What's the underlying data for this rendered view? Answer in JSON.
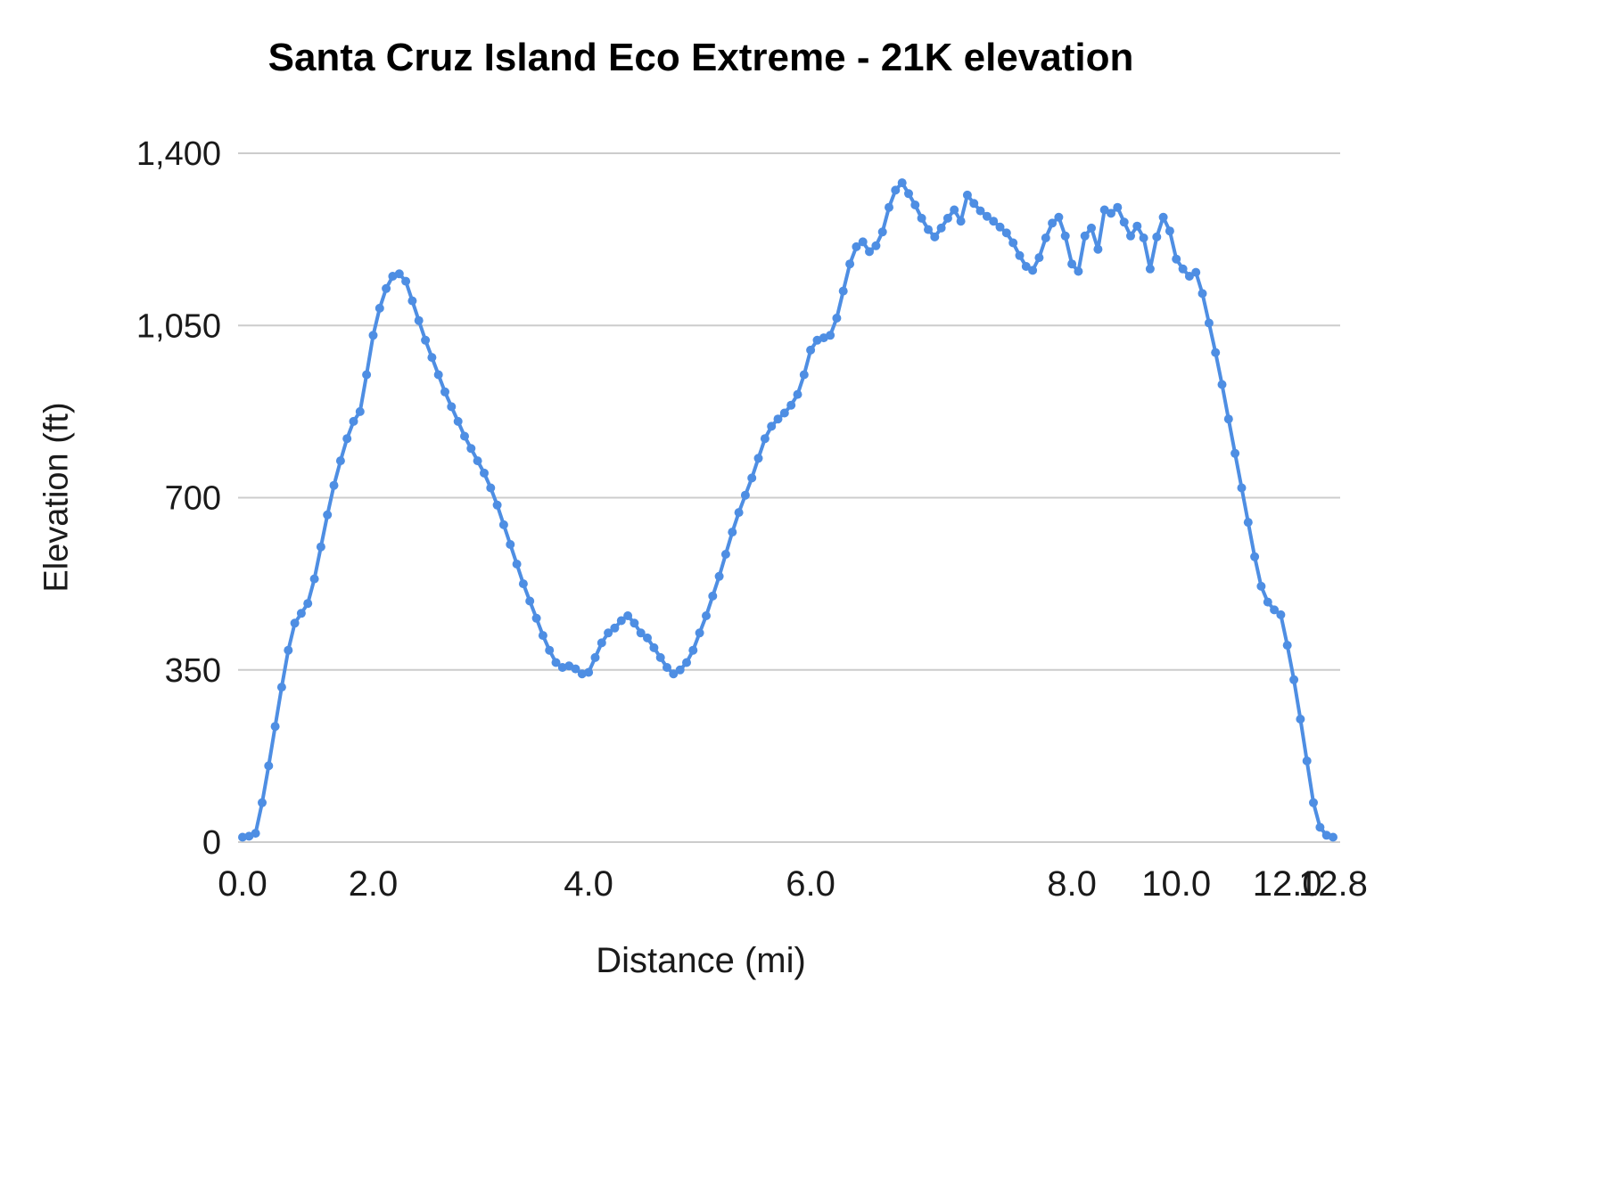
{
  "chart_data": {
    "type": "line",
    "title": "Santa Cruz Island Eco Extreme - 21K elevation",
    "xlabel": "Distance (mi)",
    "ylabel": "Elevation (ft)",
    "ylim": [
      0,
      1400
    ],
    "grid": "horizontal",
    "legend": "none",
    "axis_mode": "points-equally-spaced-by-index",
    "line_color": "#4e8ee3",
    "grid_color": "#cccccc",
    "tick_color": "#1a1a1a",
    "marker": "circle",
    "y_ticks": [
      0,
      350,
      700,
      1050,
      1400
    ],
    "y_tick_labels": [
      "0",
      "350",
      "700",
      "1,050",
      "1,400"
    ],
    "x_tick_values": [
      0.0,
      2.0,
      4.0,
      6.0,
      8.0,
      10.0,
      12.0,
      12.8
    ],
    "x_tick_labels": [
      "0.0",
      "2.0",
      "4.0",
      "6.0",
      "8.0",
      "10.0",
      "12.0",
      "12.8"
    ],
    "points": [
      [
        0.0,
        10
      ],
      [
        0.1,
        12
      ],
      [
        0.2,
        18
      ],
      [
        0.3,
        80
      ],
      [
        0.4,
        155
      ],
      [
        0.5,
        235
      ],
      [
        0.6,
        315
      ],
      [
        0.7,
        390
      ],
      [
        0.8,
        445
      ],
      [
        0.9,
        465
      ],
      [
        1.0,
        485
      ],
      [
        1.1,
        535
      ],
      [
        1.2,
        600
      ],
      [
        1.3,
        665
      ],
      [
        1.4,
        725
      ],
      [
        1.5,
        775
      ],
      [
        1.6,
        820
      ],
      [
        1.7,
        855
      ],
      [
        1.8,
        875
      ],
      [
        1.9,
        950
      ],
      [
        2.0,
        1030
      ],
      [
        2.06,
        1085
      ],
      [
        2.12,
        1125
      ],
      [
        2.18,
        1150
      ],
      [
        2.24,
        1155
      ],
      [
        2.3,
        1140
      ],
      [
        2.36,
        1100
      ],
      [
        2.42,
        1060
      ],
      [
        2.48,
        1020
      ],
      [
        2.54,
        985
      ],
      [
        2.6,
        950
      ],
      [
        2.66,
        915
      ],
      [
        2.72,
        885
      ],
      [
        2.78,
        855
      ],
      [
        2.84,
        825
      ],
      [
        2.9,
        800
      ],
      [
        2.96,
        775
      ],
      [
        3.02,
        750
      ],
      [
        3.08,
        720
      ],
      [
        3.14,
        685
      ],
      [
        3.2,
        645
      ],
      [
        3.26,
        605
      ],
      [
        3.32,
        565
      ],
      [
        3.38,
        525
      ],
      [
        3.44,
        490
      ],
      [
        3.5,
        455
      ],
      [
        3.56,
        420
      ],
      [
        3.62,
        390
      ],
      [
        3.68,
        365
      ],
      [
        3.74,
        355
      ],
      [
        3.8,
        358
      ],
      [
        3.86,
        352
      ],
      [
        3.92,
        342
      ],
      [
        3.98,
        345
      ],
      [
        4.04,
        375
      ],
      [
        4.1,
        405
      ],
      [
        4.16,
        425
      ],
      [
        4.22,
        435
      ],
      [
        4.28,
        450
      ],
      [
        4.34,
        460
      ],
      [
        4.4,
        445
      ],
      [
        4.46,
        425
      ],
      [
        4.52,
        415
      ],
      [
        4.58,
        395
      ],
      [
        4.64,
        375
      ],
      [
        4.7,
        355
      ],
      [
        4.76,
        342
      ],
      [
        4.82,
        350
      ],
      [
        4.88,
        365
      ],
      [
        4.94,
        390
      ],
      [
        5.0,
        425
      ],
      [
        5.06,
        460
      ],
      [
        5.12,
        500
      ],
      [
        5.18,
        540
      ],
      [
        5.24,
        585
      ],
      [
        5.3,
        630
      ],
      [
        5.36,
        670
      ],
      [
        5.42,
        705
      ],
      [
        5.48,
        740
      ],
      [
        5.54,
        780
      ],
      [
        5.6,
        820
      ],
      [
        5.66,
        845
      ],
      [
        5.72,
        860
      ],
      [
        5.78,
        872
      ],
      [
        5.84,
        888
      ],
      [
        5.9,
        910
      ],
      [
        5.96,
        950
      ],
      [
        6.01,
        1000
      ],
      [
        6.06,
        1020
      ],
      [
        6.11,
        1025
      ],
      [
        6.16,
        1030
      ],
      [
        6.21,
        1065
      ],
      [
        6.26,
        1120
      ],
      [
        6.31,
        1175
      ],
      [
        6.36,
        1210
      ],
      [
        6.41,
        1220
      ],
      [
        6.46,
        1200
      ],
      [
        6.51,
        1212
      ],
      [
        6.56,
        1240
      ],
      [
        6.61,
        1290
      ],
      [
        6.66,
        1325
      ],
      [
        6.71,
        1340
      ],
      [
        6.76,
        1318
      ],
      [
        6.81,
        1295
      ],
      [
        6.86,
        1268
      ],
      [
        6.91,
        1245
      ],
      [
        6.96,
        1230
      ],
      [
        7.01,
        1248
      ],
      [
        7.06,
        1268
      ],
      [
        7.11,
        1285
      ],
      [
        7.16,
        1262
      ],
      [
        7.21,
        1315
      ],
      [
        7.26,
        1298
      ],
      [
        7.31,
        1283
      ],
      [
        7.36,
        1272
      ],
      [
        7.41,
        1262
      ],
      [
        7.46,
        1250
      ],
      [
        7.51,
        1238
      ],
      [
        7.56,
        1218
      ],
      [
        7.61,
        1192
      ],
      [
        7.66,
        1170
      ],
      [
        7.71,
        1162
      ],
      [
        7.76,
        1188
      ],
      [
        7.81,
        1228
      ],
      [
        7.86,
        1258
      ],
      [
        7.91,
        1270
      ],
      [
        7.96,
        1232
      ],
      [
        8.02,
        1175
      ],
      [
        8.14,
        1160
      ],
      [
        8.26,
        1232
      ],
      [
        8.38,
        1248
      ],
      [
        8.5,
        1205
      ],
      [
        8.62,
        1285
      ],
      [
        8.74,
        1278
      ],
      [
        8.86,
        1290
      ],
      [
        8.98,
        1260
      ],
      [
        9.1,
        1232
      ],
      [
        9.22,
        1252
      ],
      [
        9.34,
        1228
      ],
      [
        9.46,
        1165
      ],
      [
        9.58,
        1230
      ],
      [
        9.7,
        1270
      ],
      [
        9.82,
        1242
      ],
      [
        9.94,
        1185
      ],
      [
        10.06,
        1165
      ],
      [
        10.18,
        1150
      ],
      [
        10.3,
        1158
      ],
      [
        10.42,
        1115
      ],
      [
        10.54,
        1055
      ],
      [
        10.66,
        995
      ],
      [
        10.78,
        930
      ],
      [
        10.9,
        860
      ],
      [
        11.02,
        790
      ],
      [
        11.14,
        720
      ],
      [
        11.26,
        650
      ],
      [
        11.38,
        580
      ],
      [
        11.5,
        520
      ],
      [
        11.62,
        488
      ],
      [
        11.74,
        472
      ],
      [
        11.86,
        462
      ],
      [
        11.98,
        400
      ],
      [
        12.1,
        330
      ],
      [
        12.25,
        250
      ],
      [
        12.4,
        165
      ],
      [
        12.55,
        80
      ],
      [
        12.65,
        30
      ],
      [
        12.72,
        14
      ],
      [
        12.8,
        10
      ]
    ]
  }
}
